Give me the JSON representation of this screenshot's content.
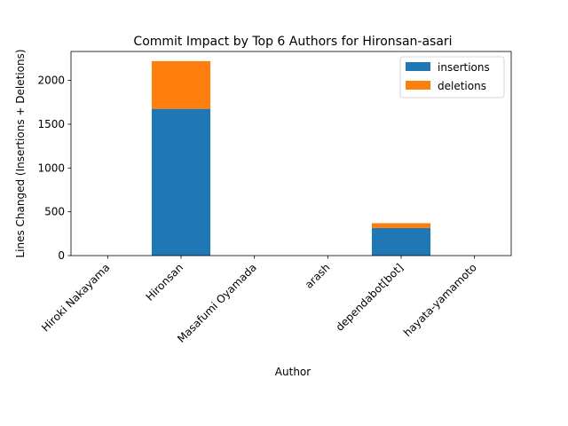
{
  "chart_data": {
    "type": "bar",
    "stacked": true,
    "title": "Commit Impact by Top 6 Authors for Hironsan-asari",
    "xlabel": "Author",
    "ylabel": "Lines Changed (Insertions + Deletions)",
    "categories": [
      "Hiroki Nakayama",
      "Hironsan",
      "Masafumi Oyamada",
      "arash",
      "dependabot[bot]",
      "hayata-yamamoto"
    ],
    "series": [
      {
        "name": "insertions",
        "color": "#1f77b4",
        "values": [
          0,
          1675,
          0,
          0,
          315,
          0
        ]
      },
      {
        "name": "deletions",
        "color": "#ff7f0e",
        "values": [
          0,
          545,
          0,
          0,
          55,
          0
        ]
      }
    ],
    "ylim": [
      0,
      2330
    ],
    "yticks": [
      0,
      500,
      1000,
      1500,
      2000
    ],
    "grid": false,
    "legend_position": "top-right"
  }
}
